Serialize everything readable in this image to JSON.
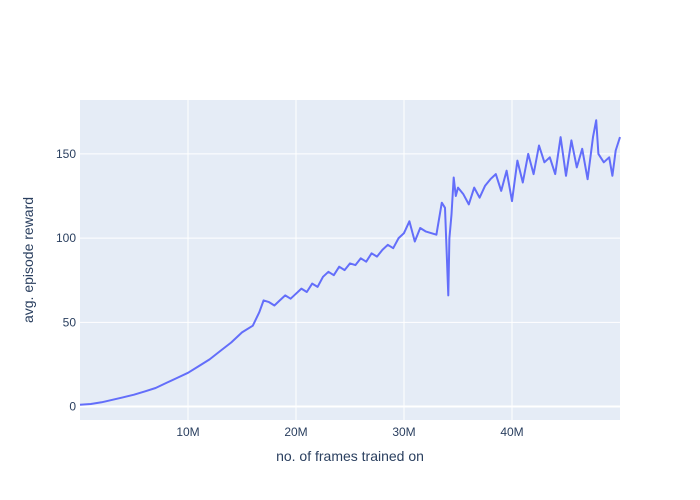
{
  "chart_data": {
    "type": "line",
    "title": "",
    "xlabel": "no. of frames trained on",
    "ylabel": "avg. episode reward",
    "xlim": [
      0,
      50000000
    ],
    "ylim": [
      -8,
      182
    ],
    "grid": true,
    "legend": "none",
    "x_ticks": [
      {
        "value": 10000000,
        "label": "10M"
      },
      {
        "value": 20000000,
        "label": "20M"
      },
      {
        "value": 30000000,
        "label": "30M"
      },
      {
        "value": 40000000,
        "label": "40M"
      }
    ],
    "y_ticks": [
      {
        "value": 0,
        "label": "0"
      },
      {
        "value": 50,
        "label": "50"
      },
      {
        "value": 100,
        "label": "100"
      },
      {
        "value": 150,
        "label": "150"
      }
    ],
    "series": [
      {
        "color": "#636efa",
        "x": [
          0,
          1000000,
          2000000,
          3000000,
          4000000,
          5000000,
          6000000,
          7000000,
          8000000,
          9000000,
          10000000,
          11000000,
          12000000,
          13000000,
          14000000,
          15000000,
          16000000,
          16600000,
          17000000,
          17500000,
          18000000,
          18500000,
          19000000,
          19500000,
          20000000,
          20500000,
          21000000,
          21500000,
          22000000,
          22500000,
          23000000,
          23500000,
          24000000,
          24500000,
          25000000,
          25500000,
          26000000,
          26500000,
          27000000,
          27500000,
          28000000,
          28500000,
          29000000,
          29500000,
          30000000,
          30500000,
          31000000,
          31500000,
          32000000,
          32500000,
          33000000,
          33500000,
          33800000,
          34100000,
          34200000,
          34400000,
          34600000,
          34800000,
          35000000,
          35500000,
          36000000,
          36500000,
          37000000,
          37500000,
          38000000,
          38500000,
          39000000,
          39500000,
          40000000,
          40500000,
          41000000,
          41500000,
          42000000,
          42500000,
          43000000,
          43500000,
          44000000,
          44500000,
          45000000,
          45500000,
          46000000,
          46500000,
          47000000,
          47500000,
          47800000,
          48000000,
          48500000,
          49000000,
          49300000,
          49600000,
          50000000
        ],
        "y": [
          1,
          1.5,
          2.5,
          4,
          5.5,
          7,
          9,
          11,
          14,
          17,
          20,
          24,
          28,
          33,
          38,
          44,
          48,
          56,
          63,
          62,
          60,
          63,
          66,
          64,
          67,
          70,
          68,
          73,
          71,
          77,
          80,
          78,
          83,
          81,
          85,
          84,
          88,
          86,
          91,
          89,
          93,
          96,
          94,
          100,
          103,
          110,
          98,
          106,
          104,
          103,
          102,
          121,
          118,
          66,
          100,
          114,
          136,
          125,
          130,
          126,
          120,
          130,
          124,
          131,
          135,
          138,
          128,
          140,
          122,
          146,
          133,
          150,
          138,
          155,
          145,
          148,
          138,
          160,
          137,
          158,
          142,
          153,
          135,
          160,
          170,
          150,
          145,
          148,
          137,
          152,
          160
        ]
      }
    ]
  }
}
